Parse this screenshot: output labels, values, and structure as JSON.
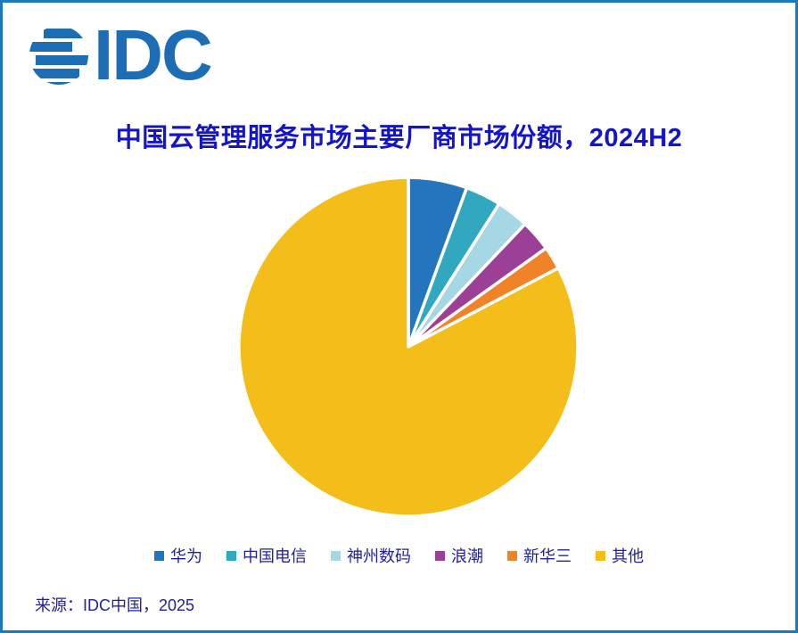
{
  "logo": {
    "text": "IDC",
    "icon": "idc-globe-icon",
    "brand_color": "#1C6DB4"
  },
  "title": "中国云管理服务市场主要厂商市场份额，2024H2",
  "source": "来源：IDC中国，2025",
  "colors": {
    "page_border": "#1F78B8",
    "title_text": "#1414C8",
    "legend_text": "#22229E",
    "background": "#FFFFFF"
  },
  "chart_data": {
    "type": "pie",
    "title": "中国云管理服务市场主要厂商市场份额，2024H2",
    "categories": [
      "华为",
      "中国电信",
      "神州数码",
      "浪潮",
      "新华三",
      "其他"
    ],
    "values": [
      5.6,
      3.4,
      3.1,
      3.0,
      2.2,
      82.7
    ],
    "unit": "percent_market_share",
    "colors": [
      "#2575BC",
      "#31A8C0",
      "#A5D8E4",
      "#9C3F96",
      "#F08227",
      "#F3BD1A"
    ],
    "start_angle_deg": 0,
    "direction": "clockwise",
    "slice_gap_color": "#FFFFFF",
    "slice_gap_width": 3.5,
    "legend_position": "bottom",
    "data_labels": "none"
  }
}
